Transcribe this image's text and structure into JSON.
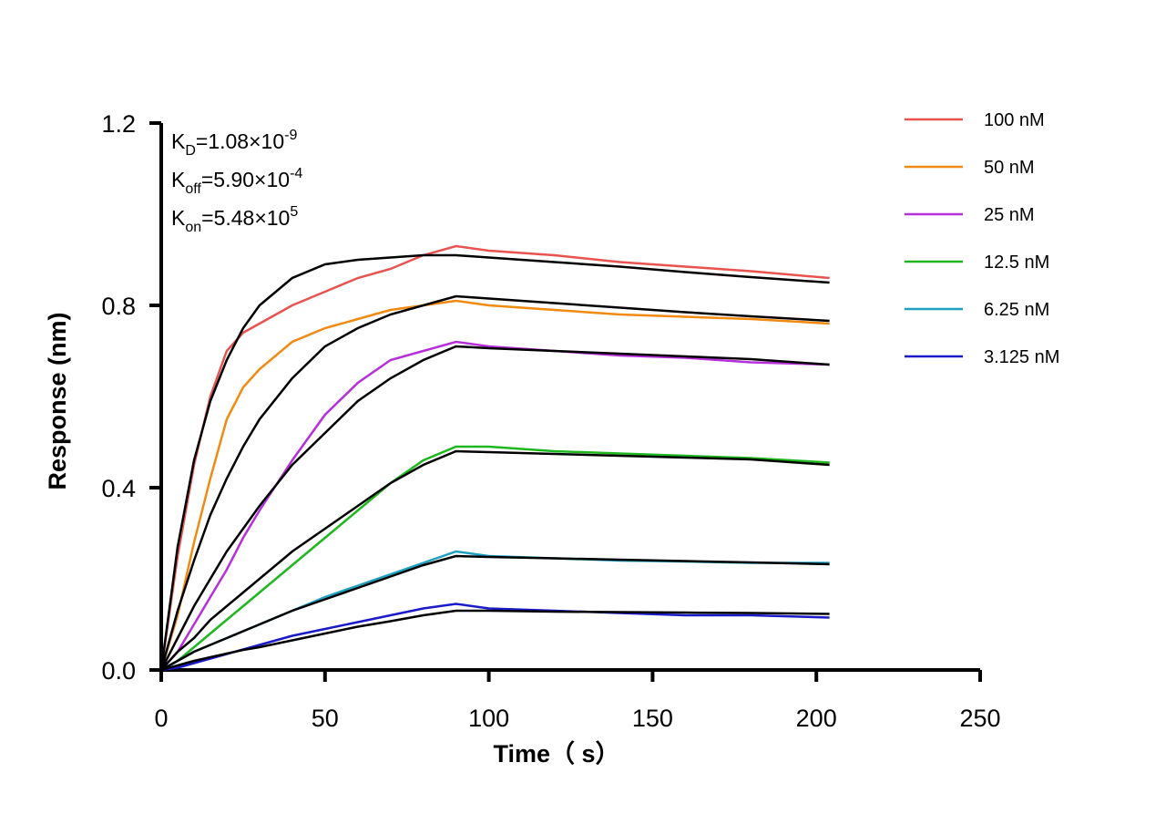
{
  "chart_data": {
    "type": "line",
    "x_label": "Time（ s）",
    "y_label": "Response (nm)",
    "x": [
      0,
      5,
      10,
      15,
      20,
      25,
      30,
      40,
      50,
      60,
      70,
      80,
      90,
      100,
      120,
      140,
      160,
      180,
      204
    ],
    "xlim": [
      0,
      250
    ],
    "xticks": [
      0,
      50,
      100,
      150,
      200,
      250
    ],
    "ylim": [
      0,
      1.2
    ],
    "yticks": [
      {
        "value": 0,
        "label": "0.0"
      },
      0.4,
      0.8,
      1.2
    ],
    "annotations": [
      {
        "symbol": "K",
        "subscript": "D",
        "text": "=1.08×10",
        "exponent": "-9"
      },
      {
        "symbol": "K",
        "subscript": "off",
        "text": "=5.90×10",
        "exponent": "-4"
      },
      {
        "symbol": "K",
        "subscript": "on",
        "text": "=5.48×10",
        "exponent": "5"
      }
    ],
    "legend": "right",
    "series": [
      {
        "name": "100 nM",
        "color": "#e8534f",
        "values": [
          0,
          0.25,
          0.45,
          0.6,
          0.7,
          0.74,
          0.76,
          0.8,
          0.83,
          0.86,
          0.88,
          0.91,
          0.93,
          0.92,
          0.91,
          0.895,
          0.885,
          0.875,
          0.86
        ]
      },
      {
        "name": "50 nM",
        "color": "#f08a10",
        "values": [
          0,
          0.12,
          0.28,
          0.42,
          0.55,
          0.62,
          0.66,
          0.72,
          0.75,
          0.77,
          0.79,
          0.8,
          0.81,
          0.8,
          0.79,
          0.78,
          0.775,
          0.77,
          0.76
        ]
      },
      {
        "name": "25 nM",
        "color": "#b530d8",
        "values": [
          0,
          0.04,
          0.1,
          0.16,
          0.22,
          0.29,
          0.35,
          0.46,
          0.56,
          0.63,
          0.68,
          0.7,
          0.72,
          0.71,
          0.7,
          0.69,
          0.685,
          0.675,
          0.67
        ]
      },
      {
        "name": "12.5 nM",
        "color": "#1fb71f",
        "values": [
          0,
          0.02,
          0.05,
          0.08,
          0.11,
          0.14,
          0.17,
          0.23,
          0.29,
          0.35,
          0.41,
          0.46,
          0.49,
          0.49,
          0.48,
          0.475,
          0.47,
          0.465,
          0.455
        ]
      },
      {
        "name": "6.25 nM",
        "color": "#1fa0c0",
        "values": [
          0,
          0.02,
          0.04,
          0.055,
          0.07,
          0.085,
          0.1,
          0.13,
          0.16,
          0.185,
          0.21,
          0.235,
          0.26,
          0.25,
          0.245,
          0.24,
          0.238,
          0.235,
          0.235
        ]
      },
      {
        "name": "3.125 nM",
        "color": "#1a1ac8",
        "values": [
          0,
          0.005,
          0.015,
          0.025,
          0.035,
          0.045,
          0.055,
          0.075,
          0.09,
          0.105,
          0.12,
          0.135,
          0.145,
          0.135,
          0.13,
          0.125,
          0.12,
          0.12,
          0.115
        ]
      }
    ],
    "fit_color": "#000000",
    "fit_series": [
      {
        "values": [
          0,
          0.27,
          0.46,
          0.59,
          0.68,
          0.75,
          0.8,
          0.86,
          0.89,
          0.9,
          0.905,
          0.91,
          0.91,
          0.905,
          0.895,
          0.885,
          0.873,
          0.862,
          0.85
        ]
      },
      {
        "values": [
          0,
          0.13,
          0.24,
          0.34,
          0.42,
          0.49,
          0.55,
          0.64,
          0.71,
          0.75,
          0.78,
          0.8,
          0.82,
          0.815,
          0.805,
          0.795,
          0.785,
          0.776,
          0.766
        ]
      },
      {
        "values": [
          0,
          0.07,
          0.14,
          0.2,
          0.26,
          0.31,
          0.36,
          0.45,
          0.52,
          0.59,
          0.64,
          0.68,
          0.71,
          0.706,
          0.7,
          0.694,
          0.688,
          0.682,
          0.67
        ]
      },
      {
        "values": [
          0,
          0.04,
          0.07,
          0.11,
          0.14,
          0.17,
          0.2,
          0.26,
          0.31,
          0.36,
          0.41,
          0.45,
          0.48,
          0.478,
          0.474,
          0.47,
          0.466,
          0.462,
          0.45
        ]
      },
      {
        "values": [
          0,
          0.02,
          0.04,
          0.055,
          0.07,
          0.085,
          0.1,
          0.13,
          0.155,
          0.18,
          0.205,
          0.23,
          0.25,
          0.248,
          0.245,
          0.242,
          0.239,
          0.236,
          0.232
        ]
      },
      {
        "values": [
          0,
          0.01,
          0.02,
          0.028,
          0.036,
          0.044,
          0.05,
          0.065,
          0.08,
          0.095,
          0.107,
          0.12,
          0.13,
          0.13,
          0.128,
          0.127,
          0.126,
          0.125,
          0.123
        ]
      }
    ]
  }
}
